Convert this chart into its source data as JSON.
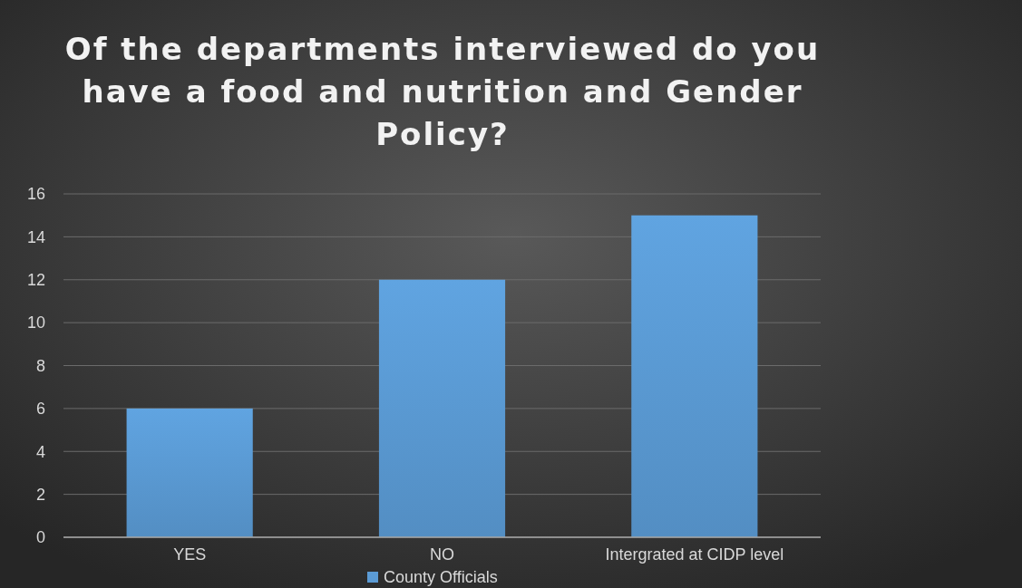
{
  "chart_data": {
    "type": "bar",
    "title": "Of the departments interviewed do you have a food and nutrition and Gender Policy?",
    "categories": [
      "YES",
      "NO",
      "Intergrated at CIDP level"
    ],
    "series": [
      {
        "name": "County Officials",
        "color": "#5b9bd5",
        "values": [
          6,
          12,
          15
        ]
      }
    ],
    "ylim": [
      0,
      16
    ],
    "yticks": [
      0,
      2,
      4,
      6,
      8,
      10,
      12,
      14,
      16
    ],
    "grid": "y",
    "legend": "bottom"
  }
}
